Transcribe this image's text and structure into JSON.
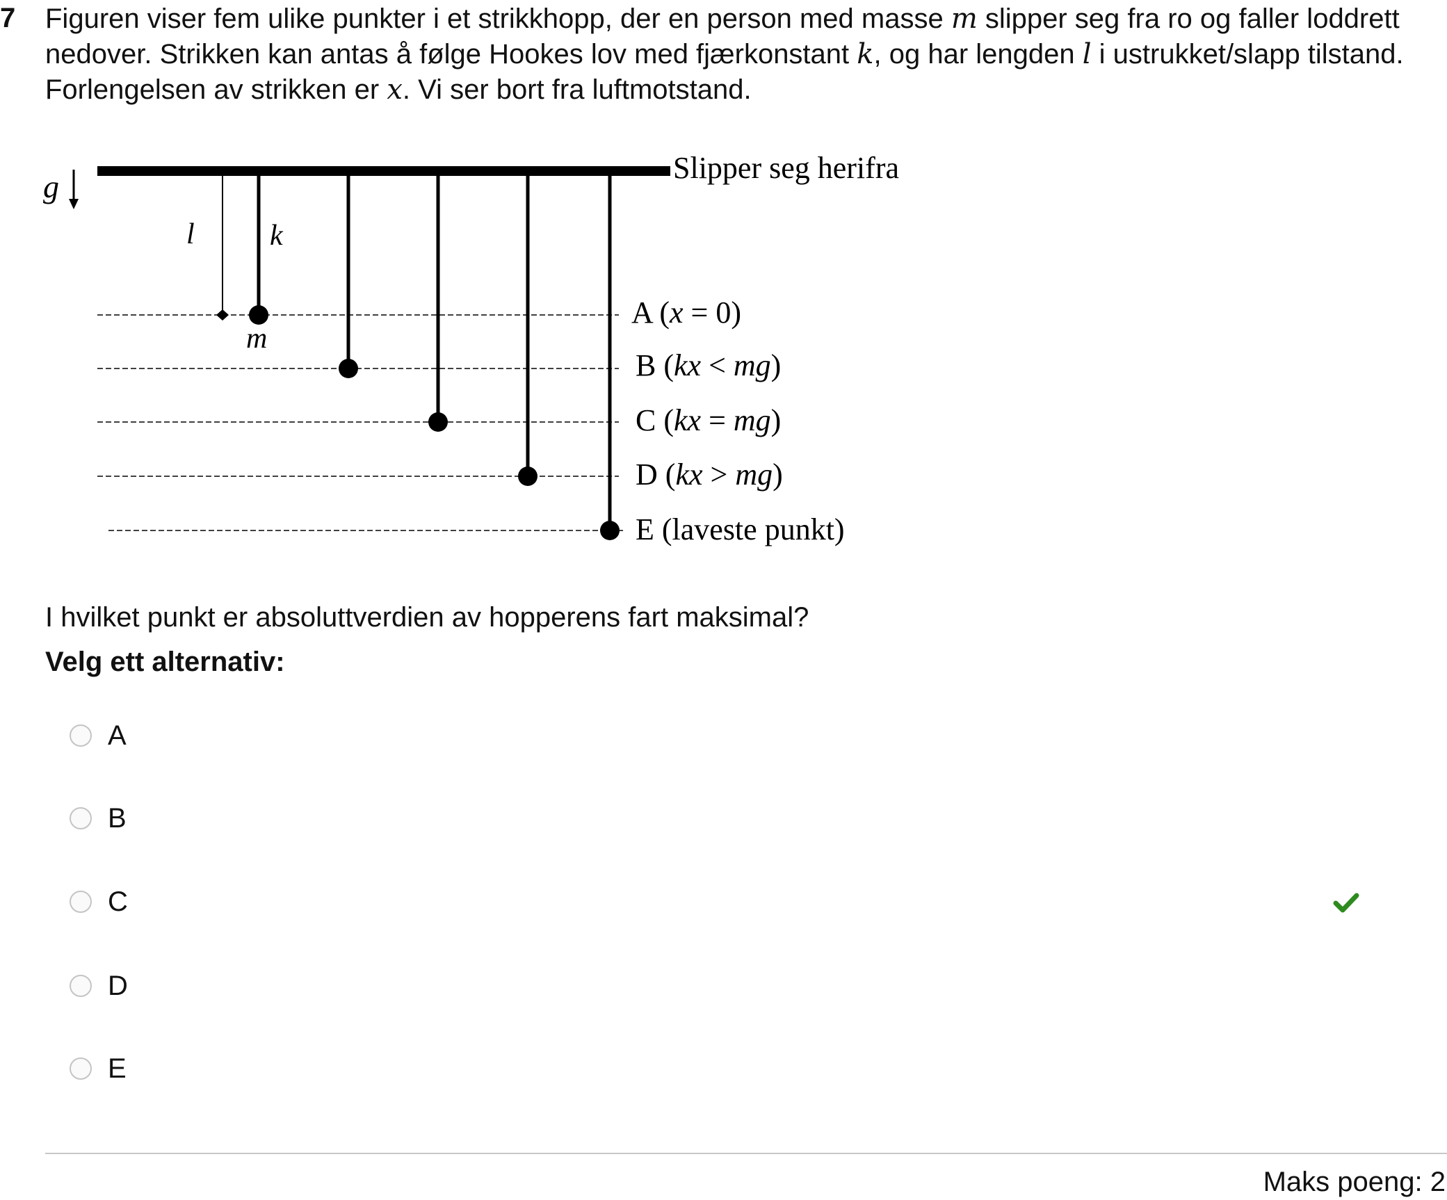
{
  "question": {
    "number": "7",
    "intro": {
      "line1_a": "Figuren viser fem ulike punkter i et strikkhopp, der en person med masse ",
      "var_m": "m",
      "line1_b": " slipper seg fra ro og faller loddrett",
      "line2_a": "nedover. Strikken kan antas å følge Hookes lov med fjærkonstant ",
      "var_k": "k",
      "line2_b": ", og har lengden ",
      "var_l": "l",
      "line2_c": " i ustrukket/slapp tilstand.",
      "line3_a": "Forlengelsen av strikken er ",
      "var_x": "x",
      "line3_b": ". Vi ser bort fra luftmotstand."
    },
    "prompt": "I hvilket punkt er absoluttverdien av hopperens fart maksimal?",
    "instruction": "Velg ett alternativ:",
    "options": [
      {
        "label": "A"
      },
      {
        "label": "B"
      },
      {
        "label": "C"
      },
      {
        "label": "D"
      },
      {
        "label": "E"
      }
    ],
    "correct_option": "C",
    "max_points": "Maks poeng: 2"
  },
  "diagram": {
    "gravity_label": "g",
    "release_label": "Slipper seg herifra",
    "length_label": "l",
    "spring_label": "k",
    "mass_label": "m",
    "points": [
      {
        "id": "A",
        "condition_prefix": "A (",
        "condition_var": "x",
        "condition_rest": " = 0)"
      },
      {
        "id": "B",
        "condition_prefix": "B (",
        "condition_var": "kx",
        "condition_rel": " < ",
        "condition_var2": "mg",
        "condition_rest": ")"
      },
      {
        "id": "C",
        "condition_prefix": "C (",
        "condition_var": "kx",
        "condition_rel": " = ",
        "condition_var2": "mg",
        "condition_rest": ")"
      },
      {
        "id": "D",
        "condition_prefix": "D (",
        "condition_var": "kx",
        "condition_rel": " > ",
        "condition_var2": "mg",
        "condition_rest": ")"
      },
      {
        "id": "E",
        "condition_prefix": "E (laveste punkt)"
      }
    ]
  },
  "colors": {
    "check": "#2e8b1e",
    "radio_border": "#c4c4c4",
    "divider": "#c8c8c8"
  },
  "icons": {
    "gravity_arrow": "down-arrow-icon",
    "correct": "check-icon"
  }
}
